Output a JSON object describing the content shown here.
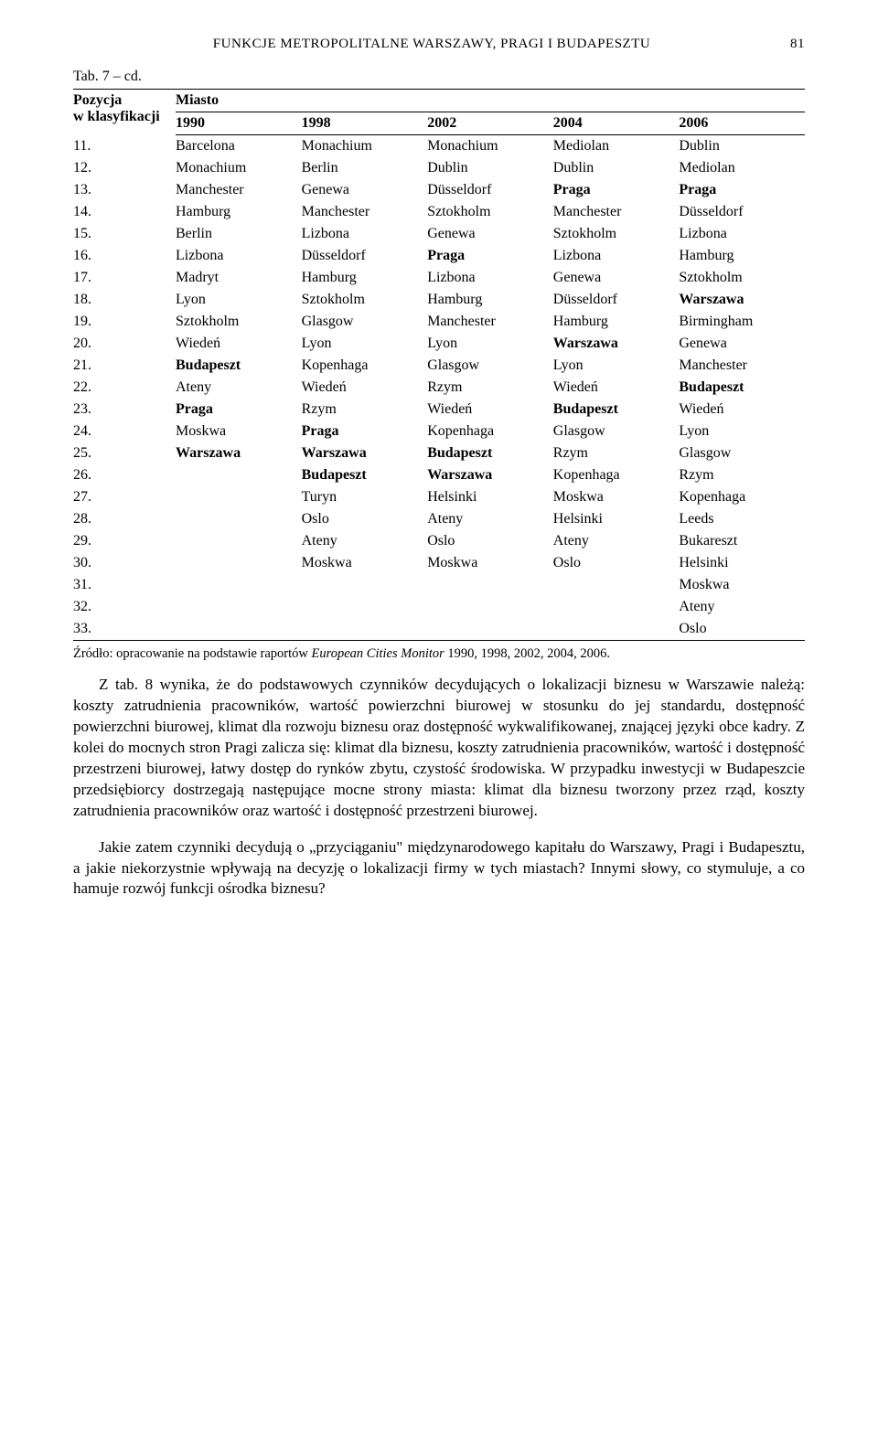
{
  "header": {
    "title": "FUNKCJE METROPOLITALNE WARSZAWY, PRAGI I BUDAPESZTU",
    "page_number": "81"
  },
  "table": {
    "caption": "Tab. 7 – cd.",
    "col_pos_label_a": "Pozycja",
    "col_pos_label_b": "w klasyfikacji",
    "col_group_label": "Miasto",
    "years": [
      "1990",
      "1998",
      "2002",
      "2004",
      "2006"
    ],
    "rows": [
      {
        "pos": "11.",
        "c": [
          "Barcelona",
          "Monachium",
          "Monachium",
          "Mediolan",
          "Dublin"
        ],
        "bold": [
          0,
          0,
          0,
          0,
          0
        ]
      },
      {
        "pos": "12.",
        "c": [
          "Monachium",
          "Berlin",
          "Dublin",
          "Dublin",
          "Mediolan"
        ],
        "bold": [
          0,
          0,
          0,
          0,
          0
        ]
      },
      {
        "pos": "13.",
        "c": [
          "Manchester",
          "Genewa",
          "Düsseldorf",
          "Praga",
          "Praga"
        ],
        "bold": [
          0,
          0,
          0,
          1,
          1
        ]
      },
      {
        "pos": "14.",
        "c": [
          "Hamburg",
          "Manchester",
          "Sztokholm",
          "Manchester",
          "Düsseldorf"
        ],
        "bold": [
          0,
          0,
          0,
          0,
          0
        ]
      },
      {
        "pos": "15.",
        "c": [
          "Berlin",
          "Lizbona",
          "Genewa",
          "Sztokholm",
          "Lizbona"
        ],
        "bold": [
          0,
          0,
          0,
          0,
          0
        ]
      },
      {
        "pos": "16.",
        "c": [
          "Lizbona",
          "Düsseldorf",
          "Praga",
          "Lizbona",
          "Hamburg"
        ],
        "bold": [
          0,
          0,
          1,
          0,
          0
        ]
      },
      {
        "pos": "17.",
        "c": [
          "Madryt",
          "Hamburg",
          "Lizbona",
          "Genewa",
          "Sztokholm"
        ],
        "bold": [
          0,
          0,
          0,
          0,
          0
        ]
      },
      {
        "pos": "18.",
        "c": [
          "Lyon",
          "Sztokholm",
          "Hamburg",
          "Düsseldorf",
          "Warszawa"
        ],
        "bold": [
          0,
          0,
          0,
          0,
          1
        ]
      },
      {
        "pos": "19.",
        "c": [
          "Sztokholm",
          "Glasgow",
          "Manchester",
          "Hamburg",
          "Birmingham"
        ],
        "bold": [
          0,
          0,
          0,
          0,
          0
        ]
      },
      {
        "pos": "20.",
        "c": [
          "Wiedeń",
          "Lyon",
          "Lyon",
          "Warszawa",
          "Genewa"
        ],
        "bold": [
          0,
          0,
          0,
          1,
          0
        ]
      },
      {
        "pos": "21.",
        "c": [
          "Budapeszt",
          "Kopenhaga",
          "Glasgow",
          "Lyon",
          "Manchester"
        ],
        "bold": [
          1,
          0,
          0,
          0,
          0
        ]
      },
      {
        "pos": "22.",
        "c": [
          "Ateny",
          "Wiedeń",
          "Rzym",
          "Wiedeń",
          "Budapeszt"
        ],
        "bold": [
          0,
          0,
          0,
          0,
          1
        ]
      },
      {
        "pos": "23.",
        "c": [
          "Praga",
          "Rzym",
          "Wiedeń",
          "Budapeszt",
          "Wiedeń"
        ],
        "bold": [
          1,
          0,
          0,
          1,
          0
        ]
      },
      {
        "pos": "24.",
        "c": [
          "Moskwa",
          "Praga",
          "Kopenhaga",
          "Glasgow",
          "Lyon"
        ],
        "bold": [
          0,
          1,
          0,
          0,
          0
        ]
      },
      {
        "pos": "25.",
        "c": [
          "Warszawa",
          "Warszawa",
          "Budapeszt",
          "Rzym",
          "Glasgow"
        ],
        "bold": [
          1,
          1,
          1,
          0,
          0
        ]
      },
      {
        "pos": "26.",
        "c": [
          "",
          "Budapeszt",
          "Warszawa",
          "Kopenhaga",
          "Rzym"
        ],
        "bold": [
          0,
          1,
          1,
          0,
          0
        ]
      },
      {
        "pos": "27.",
        "c": [
          "",
          "Turyn",
          "Helsinki",
          "Moskwa",
          "Kopenhaga"
        ],
        "bold": [
          0,
          0,
          0,
          0,
          0
        ]
      },
      {
        "pos": "28.",
        "c": [
          "",
          "Oslo",
          "Ateny",
          "Helsinki",
          "Leeds"
        ],
        "bold": [
          0,
          0,
          0,
          0,
          0
        ]
      },
      {
        "pos": "29.",
        "c": [
          "",
          "Ateny",
          "Oslo",
          "Ateny",
          "Bukareszt"
        ],
        "bold": [
          0,
          0,
          0,
          0,
          0
        ]
      },
      {
        "pos": "30.",
        "c": [
          "",
          "Moskwa",
          "Moskwa",
          "Oslo",
          "Helsinki"
        ],
        "bold": [
          0,
          0,
          0,
          0,
          0
        ]
      },
      {
        "pos": "31.",
        "c": [
          "",
          "",
          "",
          "",
          "Moskwa"
        ],
        "bold": [
          0,
          0,
          0,
          0,
          0
        ]
      },
      {
        "pos": "32.",
        "c": [
          "",
          "",
          "",
          "",
          "Ateny"
        ],
        "bold": [
          0,
          0,
          0,
          0,
          0
        ]
      },
      {
        "pos": "33.",
        "c": [
          "",
          "",
          "",
          "",
          "Oslo"
        ],
        "bold": [
          0,
          0,
          0,
          0,
          0
        ]
      }
    ],
    "source_prefix": "Źródło: opracowanie na podstawie raportów ",
    "source_italic": "European Cities Monitor",
    "source_suffix": " 1990, 1998, 2002, 2004, 2006."
  },
  "paragraphs": {
    "p1": "Z tab. 8 wynika, że do podstawowych czynników decydujących o lokalizacji biznesu w Warszawie należą: koszty zatrudnienia pracowników, wartość powierzchni biurowej w stosunku do jej standardu, dostępność powierzchni biurowej, klimat dla rozwoju biznesu oraz dostępność wykwalifikowanej, znającej języki obce kadry. Z kolei do mocnych stron Pragi zalicza się: klimat dla biznesu, koszty zatrudnienia pracowników, wartość i dostępność przestrzeni biurowej, łatwy dostęp do rynków zbytu, czystość środowiska. W przypadku inwestycji w Budapeszcie przedsiębiorcy dostrzegają następujące mocne strony miasta: klimat dla biznesu tworzony przez rząd, koszty zatrudnienia pracowników oraz wartość i dostępność przestrzeni biurowej.",
    "p2": "Jakie zatem czynniki decydują o „przyciąganiu\" międzynarodowego kapitału do Warszawy, Pragi i Budapesztu, a jakie niekorzystnie wpływają na decyzję o lokalizacji firmy w tych miastach? Innymi słowy, co stymuluje, a co hamuje rozwój funkcji ośrodka biznesu?"
  }
}
